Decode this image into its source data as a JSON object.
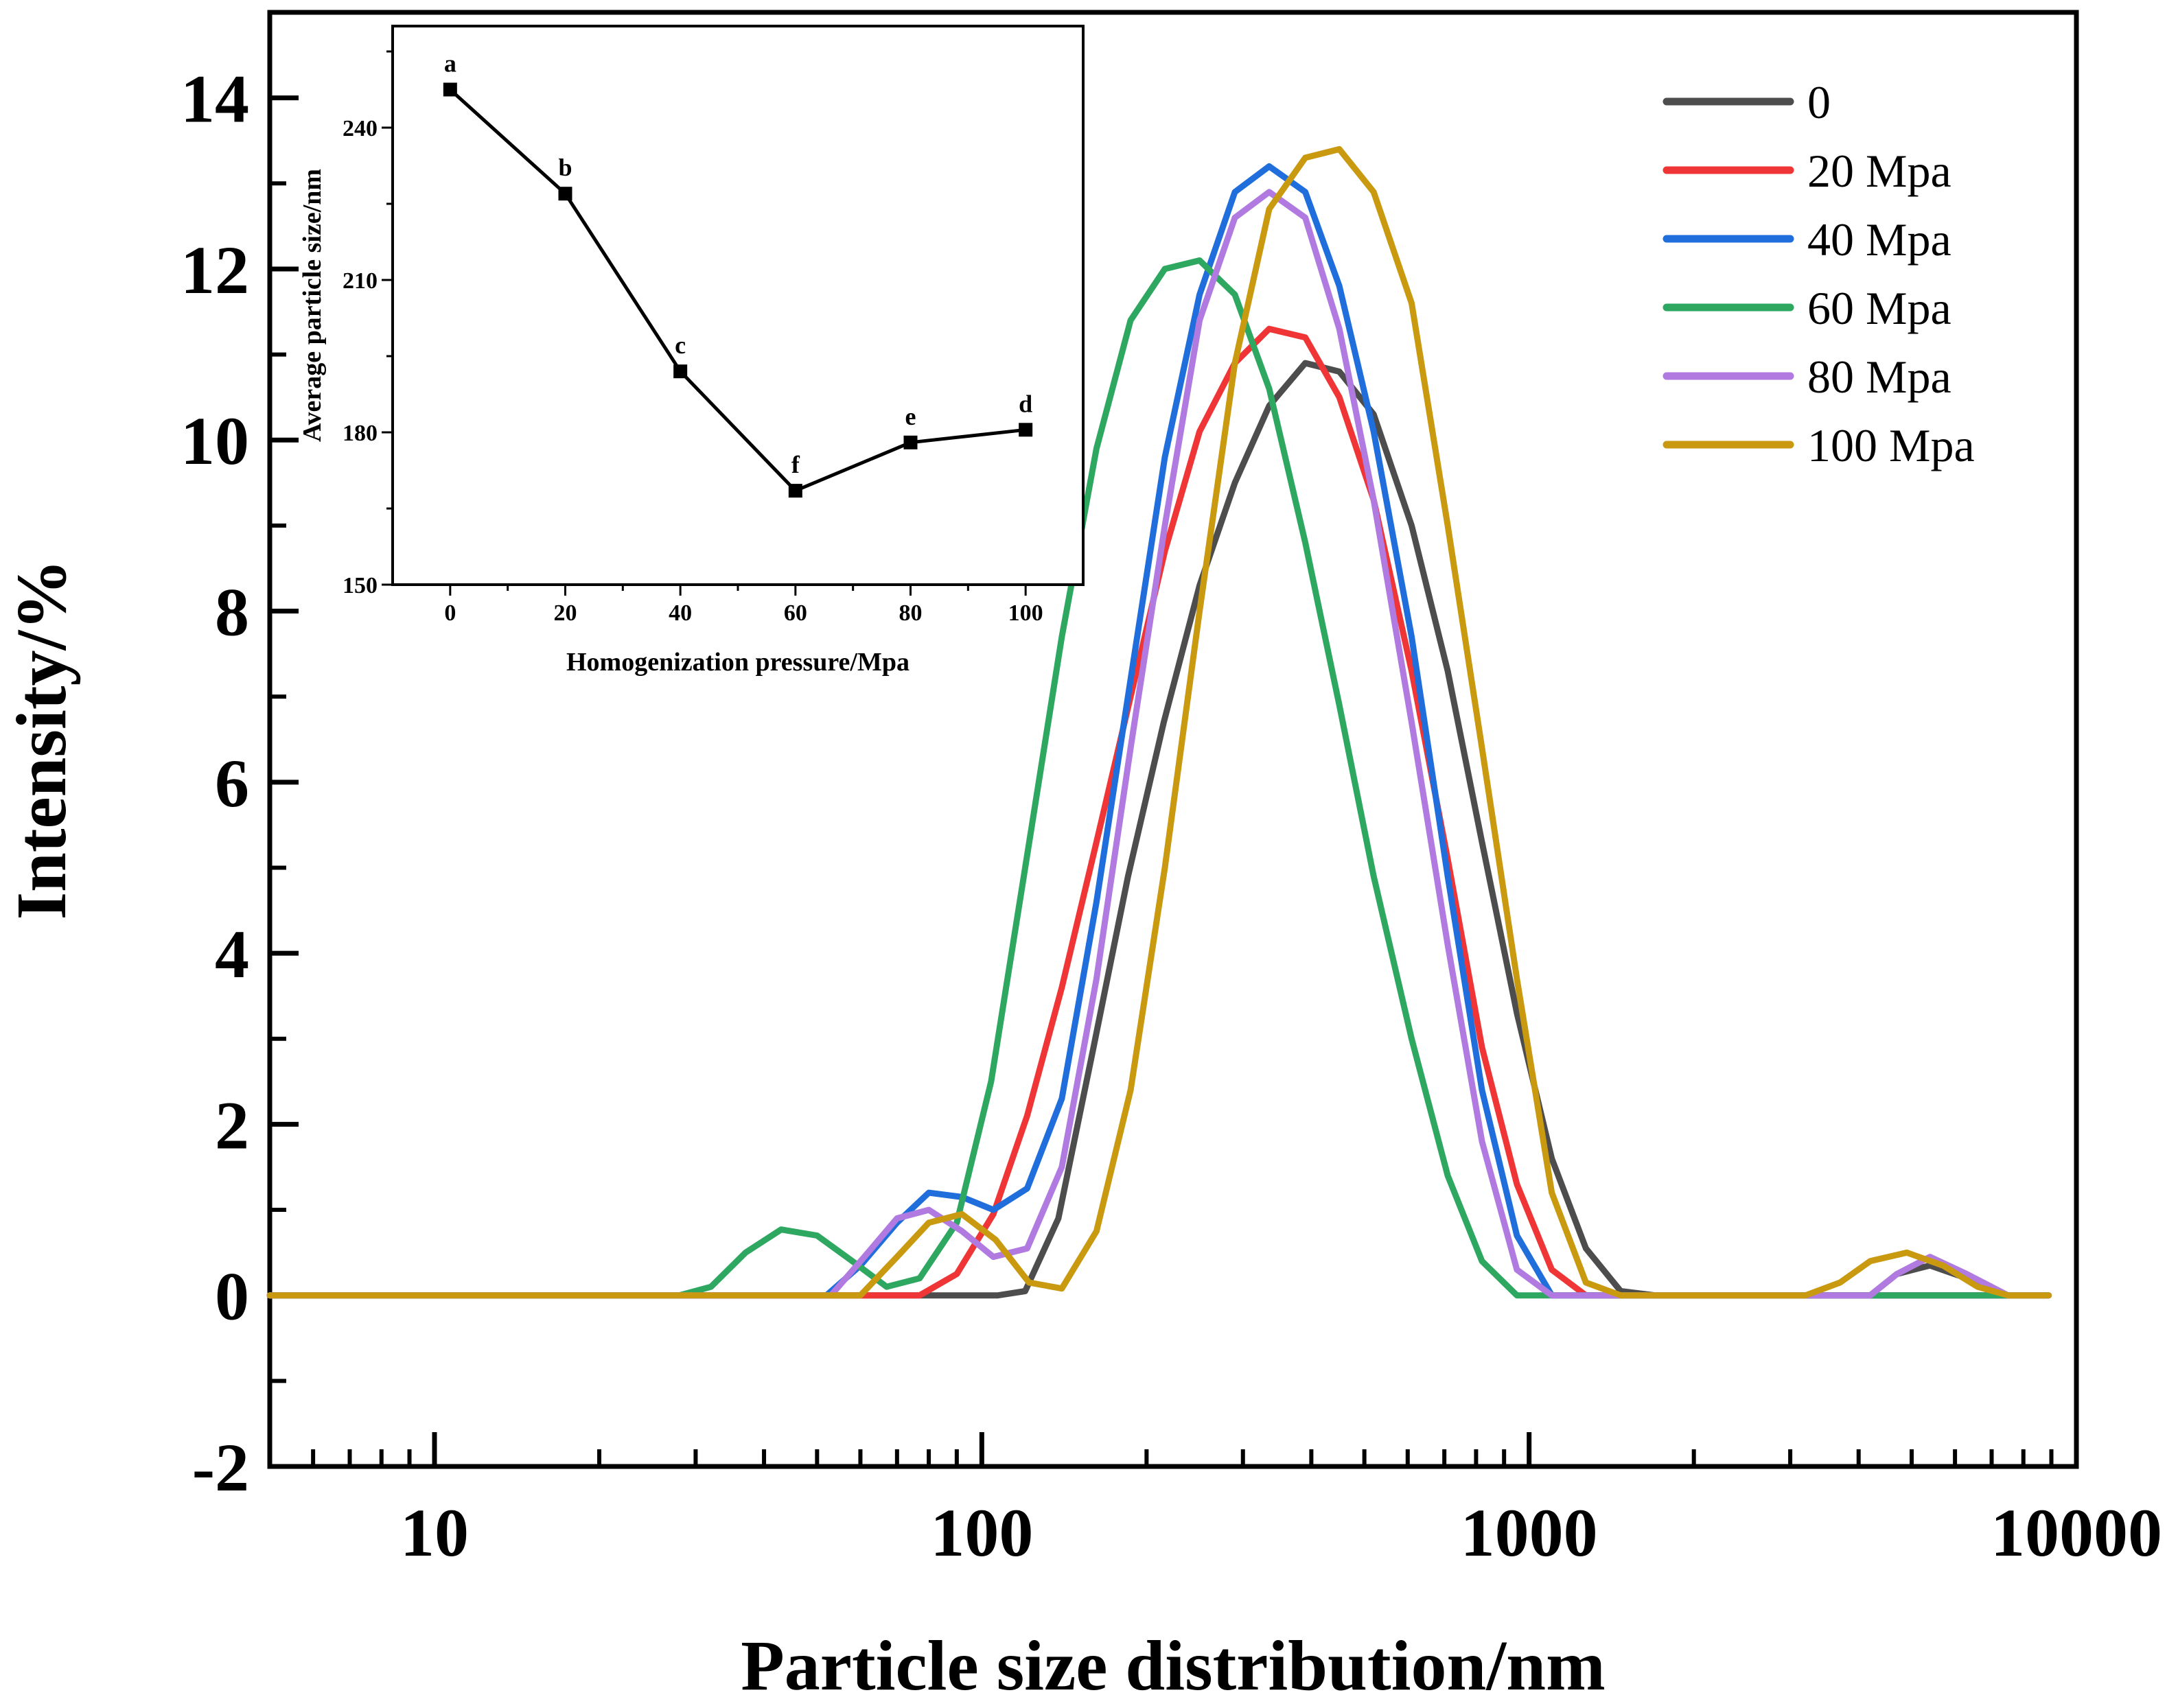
{
  "chart_data": [
    {
      "type": "line",
      "xscale": "log",
      "xlabel": "Particle size distribution/nm",
      "ylabel": "Intensity/%",
      "xlim": [
        5,
        10000
      ],
      "ylim": [
        -2,
        15
      ],
      "xticks": [
        10,
        100,
        1000,
        10000
      ],
      "xtick_labels": [
        "10",
        "100",
        "1000",
        "10000"
      ],
      "yticks": [
        -2,
        0,
        2,
        4,
        6,
        8,
        10,
        12,
        14
      ],
      "ytick_labels": [
        "-2",
        "0",
        "2",
        "4",
        "6",
        "8",
        "10",
        "12",
        "14"
      ],
      "legend_position": "top-right",
      "series": [
        {
          "name": "0",
          "color": "#4d4d4d",
          "points": [
            [
              5,
              0
            ],
            [
              107,
              0
            ],
            [
              120,
              0.05
            ],
            [
              138,
              0.9
            ],
            [
              160,
              2.9
            ],
            [
              185,
              4.9
            ],
            [
              215,
              6.7
            ],
            [
              250,
              8.3
            ],
            [
              290,
              9.5
            ],
            [
              335,
              10.4
            ],
            [
              390,
              10.9
            ],
            [
              450,
              10.8
            ],
            [
              520,
              10.3
            ],
            [
              610,
              9.0
            ],
            [
              710,
              7.3
            ],
            [
              820,
              5.3
            ],
            [
              950,
              3.3
            ],
            [
              1100,
              1.6
            ],
            [
              1270,
              0.55
            ],
            [
              1470,
              0.05
            ],
            [
              1700,
              0
            ],
            [
              4200,
              0
            ],
            [
              4700,
              0.25
            ],
            [
              5400,
              0.35
            ],
            [
              6300,
              0.2
            ],
            [
              7500,
              0
            ],
            [
              8900,
              0
            ]
          ]
        },
        {
          "name": "20 Mpa",
          "color": "#ef3535",
          "points": [
            [
              5,
              0
            ],
            [
              77,
              0
            ],
            [
              90,
              0.25
            ],
            [
              105,
              0.95
            ],
            [
              121,
              2.1
            ],
            [
              140,
              3.6
            ],
            [
              162,
              5.3
            ],
            [
              187,
              7.0
            ],
            [
              216,
              8.7
            ],
            [
              250,
              10.1
            ],
            [
              290,
              10.9
            ],
            [
              335,
              11.3
            ],
            [
              390,
              11.2
            ],
            [
              450,
              10.5
            ],
            [
              520,
              9.3
            ],
            [
              610,
              7.3
            ],
            [
              710,
              5.1
            ],
            [
              820,
              2.9
            ],
            [
              950,
              1.3
            ],
            [
              1100,
              0.3
            ],
            [
              1270,
              0
            ],
            [
              8900,
              0
            ]
          ]
        },
        {
          "name": "40 Mpa",
          "color": "#1f6edb",
          "points": [
            [
              5,
              0
            ],
            [
              52,
              0
            ],
            [
              60,
              0.35
            ],
            [
              70,
              0.85
            ],
            [
              80,
              1.2
            ],
            [
              92,
              1.15
            ],
            [
              105,
              1.0
            ],
            [
              121,
              1.25
            ],
            [
              140,
              2.3
            ],
            [
              162,
              4.6
            ],
            [
              187,
              7.2
            ],
            [
              216,
              9.8
            ],
            [
              250,
              11.7
            ],
            [
              290,
              12.9
            ],
            [
              335,
              13.2
            ],
            [
              390,
              12.9
            ],
            [
              450,
              11.8
            ],
            [
              520,
              10.1
            ],
            [
              610,
              7.7
            ],
            [
              710,
              4.9
            ],
            [
              820,
              2.4
            ],
            [
              950,
              0.7
            ],
            [
              1100,
              0
            ],
            [
              8900,
              0
            ]
          ]
        },
        {
          "name": "60 Mpa",
          "color": "#2ea760",
          "points": [
            [
              5,
              0
            ],
            [
              28,
              0
            ],
            [
              32,
              0.1
            ],
            [
              37,
              0.5
            ],
            [
              43,
              0.77
            ],
            [
              50,
              0.7
            ],
            [
              58,
              0.4
            ],
            [
              67,
              0.1
            ],
            [
              77,
              0.2
            ],
            [
              90,
              0.85
            ],
            [
              104,
              2.5
            ],
            [
              120,
              5.0
            ],
            [
              140,
              7.7
            ],
            [
              162,
              9.9
            ],
            [
              187,
              11.4
            ],
            [
              216,
              12.0
            ],
            [
              250,
              12.1
            ],
            [
              290,
              11.7
            ],
            [
              335,
              10.6
            ],
            [
              390,
              8.8
            ],
            [
              450,
              6.9
            ],
            [
              520,
              4.9
            ],
            [
              610,
              3.0
            ],
            [
              710,
              1.4
            ],
            [
              820,
              0.4
            ],
            [
              950,
              0
            ],
            [
              8900,
              0
            ]
          ]
        },
        {
          "name": "80 Mpa",
          "color": "#b07ae0",
          "points": [
            [
              5,
              0
            ],
            [
              53,
              0
            ],
            [
              61,
              0.45
            ],
            [
              70,
              0.9
            ],
            [
              80,
              1.0
            ],
            [
              92,
              0.75
            ],
            [
              105,
              0.45
            ],
            [
              121,
              0.55
            ],
            [
              140,
              1.5
            ],
            [
              162,
              3.7
            ],
            [
              187,
              6.4
            ],
            [
              216,
              9.0
            ],
            [
              250,
              11.4
            ],
            [
              290,
              12.6
            ],
            [
              335,
              12.9
            ],
            [
              390,
              12.6
            ],
            [
              450,
              11.3
            ],
            [
              520,
              9.3
            ],
            [
              610,
              6.7
            ],
            [
              710,
              4.1
            ],
            [
              820,
              1.8
            ],
            [
              950,
              0.3
            ],
            [
              1100,
              0
            ],
            [
              4200,
              0
            ],
            [
              4700,
              0.25
            ],
            [
              5400,
              0.45
            ],
            [
              6300,
              0.25
            ],
            [
              7500,
              0
            ],
            [
              8900,
              0
            ]
          ]
        },
        {
          "name": "100 Mpa",
          "color": "#c99a10",
          "points": [
            [
              5,
              0
            ],
            [
              60,
              0
            ],
            [
              70,
              0.45
            ],
            [
              80,
              0.85
            ],
            [
              92,
              0.95
            ],
            [
              106,
              0.65
            ],
            [
              122,
              0.15
            ],
            [
              140,
              0.08
            ],
            [
              162,
              0.75
            ],
            [
              187,
              2.4
            ],
            [
              216,
              5.0
            ],
            [
              250,
              8.0
            ],
            [
              290,
              10.9
            ],
            [
              335,
              12.7
            ],
            [
              390,
              13.3
            ],
            [
              450,
              13.4
            ],
            [
              520,
              12.9
            ],
            [
              610,
              11.6
            ],
            [
              710,
              9.0
            ],
            [
              820,
              6.4
            ],
            [
              950,
              3.7
            ],
            [
              1100,
              1.2
            ],
            [
              1270,
              0.15
            ],
            [
              1470,
              0
            ],
            [
              3200,
              0
            ],
            [
              3700,
              0.15
            ],
            [
              4200,
              0.4
            ],
            [
              4900,
              0.5
            ],
            [
              5700,
              0.35
            ],
            [
              6600,
              0.1
            ],
            [
              7500,
              0
            ],
            [
              8900,
              0
            ]
          ]
        }
      ]
    },
    {
      "type": "line",
      "inset": true,
      "xlabel": "Homogenization pressure/Mpa",
      "ylabel": "Average particle size/nm",
      "xlim": [
        -10,
        110
      ],
      "ylim": [
        150,
        260
      ],
      "xticks": [
        0,
        20,
        40,
        60,
        80,
        100
      ],
      "xtick_labels": [
        "0",
        "20",
        "40",
        "60",
        "80",
        "100"
      ],
      "yticks": [
        150,
        180,
        210,
        240
      ],
      "ytick_labels": [
        "150",
        "180",
        "210",
        "240"
      ],
      "color": "#000000",
      "x": [
        0,
        20,
        40,
        60,
        80,
        100
      ],
      "y": [
        247.5,
        227,
        192,
        168.5,
        178,
        180.5
      ],
      "point_labels": [
        "a",
        "b",
        "c",
        "f",
        "e",
        "d"
      ]
    }
  ]
}
